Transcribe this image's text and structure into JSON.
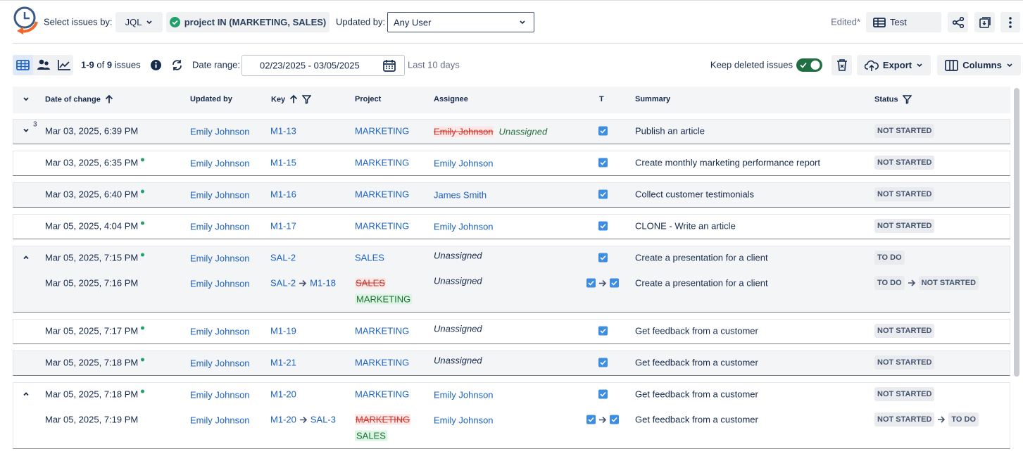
{
  "header": {
    "select_label": "Select issues by:",
    "jql": "JQL",
    "query": "project IN (MARKETING, SALES)",
    "updated_label": "Updated by:",
    "updated_value": "Any User",
    "edited": "Edited*",
    "view": "Test"
  },
  "toolbar": {
    "range": "1-9",
    "of": "of",
    "total": "9",
    "issues": "issues",
    "date_label": "Date range:",
    "date_value": "02/23/2025 - 03/05/2025",
    "last": "Last 10 days",
    "keep": "Keep deleted issues",
    "export": "Export",
    "columns": "Columns"
  },
  "table": {
    "headers": [
      "Date of change",
      "Updated by",
      "Key",
      "Project",
      "Assignee",
      "T",
      "Summary",
      "Status"
    ],
    "groups": [
      {
        "shaded": true,
        "expanded": false,
        "badge": "3",
        "entries": [
          {
            "date": "Mar 03, 2025, 6:39 PM",
            "user": "Emily Johnson",
            "key": "M1-13",
            "project": "MARKETING",
            "assignee": {
              "from": "Emily Johnson",
              "to": "Unassigned"
            },
            "summary": "Publish an article",
            "status": "NOT STARTED"
          }
        ]
      },
      {
        "shaded": false,
        "entries": [
          {
            "date": "Mar 03, 2025, 6:35 PM",
            "dot": true,
            "user": "Emily Johnson",
            "key": "M1-15",
            "project": "MARKETING",
            "assignee": "Emily Johnson",
            "summary": "Create monthly marketing performance report",
            "status": "NOT STARTED"
          }
        ]
      },
      {
        "shaded": true,
        "entries": [
          {
            "date": "Mar 03, 2025, 6:40 PM",
            "dot": true,
            "user": "Emily Johnson",
            "key": "M1-16",
            "project": "MARKETING",
            "assignee": "James Smith",
            "summary": "Collect customer testimonials",
            "status": "NOT STARTED"
          }
        ]
      },
      {
        "shaded": false,
        "entries": [
          {
            "date": "Mar 05, 2025, 4:04 PM",
            "dot": true,
            "user": "Emily Johnson",
            "key": "M1-17",
            "project": "MARKETING",
            "assignee": "Emily Johnson",
            "summary": "CLONE - Write an article",
            "status": "NOT STARTED"
          }
        ]
      },
      {
        "shaded": true,
        "expanded": true,
        "entries": [
          {
            "date": "Mar 05, 2025, 7:15 PM",
            "dot": true,
            "user": "Emily Johnson",
            "key": "SAL-2",
            "project": "SALES",
            "assignee_note": "Unassigned",
            "summary": "Create a presentation for a client",
            "status": "TO DO"
          },
          {
            "date": "Mar 05, 2025, 7:16 PM",
            "user": "Emily Johnson",
            "key": {
              "from": "SAL-2",
              "to": "M1-18"
            },
            "project": {
              "from": "SALES",
              "to": "MARKETING"
            },
            "assignee_note": "Unassigned",
            "type_changed": true,
            "summary": "Create a presentation for a client",
            "status": {
              "from": "TO DO",
              "to": "NOT STARTED"
            }
          }
        ]
      },
      {
        "shaded": false,
        "entries": [
          {
            "date": "Mar 05, 2025, 7:17 PM",
            "dot": true,
            "user": "Emily Johnson",
            "key": "M1-19",
            "project": "MARKETING",
            "assignee_note": "Unassigned",
            "summary": "Get feedback from a customer",
            "status": "NOT STARTED"
          }
        ]
      },
      {
        "shaded": true,
        "entries": [
          {
            "date": "Mar 05, 2025, 7:18 PM",
            "dot": true,
            "user": "Emily Johnson",
            "key": "M1-21",
            "project": "MARKETING",
            "assignee_note": "Unassigned",
            "summary": "Get feedback from a customer",
            "status": "NOT STARTED"
          }
        ]
      },
      {
        "shaded": false,
        "expanded": true,
        "entries": [
          {
            "date": "Mar 05, 2025, 7:18 PM",
            "dot": true,
            "user": "Emily Johnson",
            "key": "M1-20",
            "project": "MARKETING",
            "assignee": "Emily Johnson",
            "summary": "Get feedback from a customer",
            "status": "NOT STARTED"
          },
          {
            "date": "Mar 05, 2025, 7:19 PM",
            "user": "Emily Johnson",
            "key": {
              "from": "M1-20",
              "to": "SAL-3"
            },
            "project": {
              "from": "MARKETING",
              "to": "SALES"
            },
            "assignee": "Emily Johnson",
            "type_changed": true,
            "summary": "Get feedback from a customer",
            "status": {
              "from": "NOT STARTED",
              "to": "TO DO"
            }
          }
        ]
      }
    ]
  }
}
